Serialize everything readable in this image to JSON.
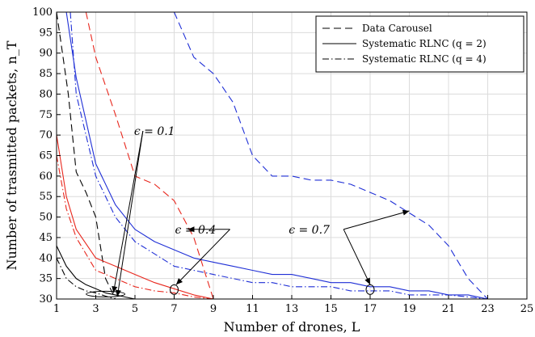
{
  "chart_data": {
    "type": "line",
    "title": "",
    "xlabel": "Number of drones, L",
    "ylabel": "Number of trasmitted packets, n_T",
    "xlim": [
      1,
      25
    ],
    "ylim": [
      30,
      100
    ],
    "xticks": [
      1,
      3,
      5,
      7,
      9,
      11,
      13,
      15,
      17,
      19,
      21,
      23,
      25
    ],
    "yticks": [
      30,
      35,
      40,
      45,
      50,
      55,
      60,
      65,
      70,
      75,
      80,
      85,
      90,
      95,
      100
    ],
    "grid": true,
    "legend": {
      "placement": "top-right",
      "entries": [
        {
          "label": "Data Carousel",
          "style": "dashed"
        },
        {
          "label": "Systematic RLNC (q = 2)",
          "style": "solid"
        },
        {
          "label": "Systematic RLNC (q = 4)",
          "style": "dashdot"
        }
      ]
    },
    "colors": {
      "eps_0.1": "#000000",
      "eps_0.4": "#e8261c",
      "eps_0.7": "#1f2fd6"
    },
    "series": [
      {
        "group": "eps_0.1",
        "scheme": "Data Carousel",
        "style": "dashed",
        "x": [
          1,
          1.3,
          1.6,
          2,
          2.5,
          3,
          3.5,
          4
        ],
        "y": [
          100,
          90,
          80,
          61,
          56,
          50,
          35,
          30
        ]
      },
      {
        "group": "eps_0.1",
        "scheme": "Systematic RLNC (q = 2)",
        "style": "solid",
        "x": [
          1,
          1.5,
          2,
          2.5,
          3,
          3.5,
          4,
          4.5,
          5
        ],
        "y": [
          43,
          38,
          35,
          33.5,
          32.5,
          31.5,
          31,
          30.5,
          30
        ]
      },
      {
        "group": "eps_0.1",
        "scheme": "Systematic RLNC (q = 4)",
        "style": "dashdot",
        "x": [
          1,
          1.5,
          2,
          2.5,
          3,
          3.5,
          4
        ],
        "y": [
          40,
          35,
          33,
          32,
          31.5,
          30.7,
          30
        ]
      },
      {
        "group": "eps_0.4",
        "scheme": "Data Carousel",
        "style": "dashed",
        "x": [
          2.5,
          3,
          4,
          5,
          6,
          7,
          8,
          9
        ],
        "y": [
          100,
          89,
          75,
          60,
          58,
          54,
          45,
          30
        ]
      },
      {
        "group": "eps_0.4",
        "scheme": "Systematic RLNC (q = 2)",
        "style": "solid",
        "x": [
          1,
          1.5,
          2,
          3,
          4,
          5,
          6,
          7,
          8,
          9,
          25
        ],
        "y": [
          70,
          55,
          47,
          40,
          38,
          36,
          34,
          32.5,
          31,
          30,
          30
        ]
      },
      {
        "group": "eps_0.4",
        "scheme": "Systematic RLNC (q = 4)",
        "style": "dashdot",
        "x": [
          1,
          1.5,
          2,
          3,
          4,
          5,
          6,
          7,
          8,
          9,
          25
        ],
        "y": [
          65,
          52,
          45,
          37,
          35,
          33,
          32,
          31.5,
          30.5,
          30,
          30
        ]
      },
      {
        "group": "eps_0.7",
        "scheme": "Data Carousel",
        "style": "dashed",
        "x": [
          7,
          8,
          9,
          10,
          11,
          12,
          13,
          14,
          15,
          16,
          17,
          18,
          19,
          20,
          21,
          22,
          23
        ],
        "y": [
          100,
          89,
          85,
          78,
          65,
          60,
          60,
          59,
          59,
          58,
          56,
          54,
          51,
          48,
          43,
          35,
          30
        ]
      },
      {
        "group": "eps_0.7",
        "scheme": "Systematic RLNC (q = 2)",
        "style": "solid",
        "x": [
          1.5,
          2,
          3,
          4,
          5,
          6,
          7,
          8,
          9,
          10,
          11,
          12,
          13,
          14,
          15,
          16,
          17,
          18,
          19,
          20,
          21,
          22,
          23,
          25
        ],
        "y": [
          100,
          84,
          63,
          53,
          47,
          44,
          42,
          40,
          39,
          38,
          37,
          36,
          36,
          35,
          34,
          34,
          33,
          33,
          32,
          32,
          31,
          31,
          30,
          30
        ]
      },
      {
        "group": "eps_0.7",
        "scheme": "Systematic RLNC (q = 4)",
        "style": "dashdot",
        "x": [
          1.7,
          2,
          3,
          4,
          5,
          6,
          7,
          8,
          9,
          10,
          11,
          12,
          13,
          14,
          15,
          16,
          17,
          18,
          19,
          20,
          21,
          22,
          23,
          25
        ],
        "y": [
          100,
          80,
          60,
          50,
          44,
          41,
          38,
          37,
          36,
          35,
          34,
          34,
          33,
          33,
          33,
          32,
          32,
          32,
          31,
          31,
          31,
          30.5,
          30,
          30
        ]
      }
    ],
    "annotations": [
      {
        "label": "ϵ = 0.1",
        "text_at": [
          5.2,
          71
        ],
        "arrow_to": [
          [
            3.9,
            31.5
          ],
          [
            4.1,
            30.6
          ]
        ],
        "ellipse": [
          3.5,
          31.2
        ]
      },
      {
        "label": "ϵ = 0.4",
        "text_at": [
          9.6,
          47
        ],
        "arrow_to": [
          [
            7.7,
            47
          ],
          [
            7.1,
            33.5
          ]
        ],
        "ellipse": [
          7,
          32.3
        ]
      },
      {
        "label": "ϵ = 0.7",
        "text_at": [
          15.4,
          47
        ],
        "arrow_to": [
          [
            19,
            51.5
          ],
          [
            17,
            33.5
          ]
        ],
        "ellipse": [
          17,
          32.3
        ]
      }
    ]
  }
}
